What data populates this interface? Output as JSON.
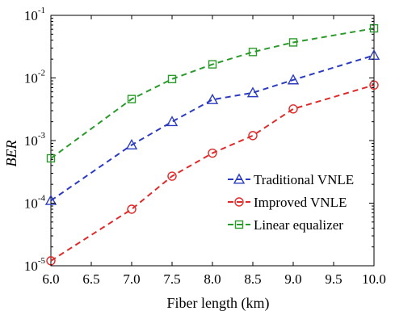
{
  "chart_data": {
    "type": "line",
    "xlabel": "Fiber length (km)",
    "ylabel": "BER",
    "yscale": "log",
    "xlim": [
      6.0,
      10.0
    ],
    "ylim": [
      1e-05,
      0.1
    ],
    "grid": false,
    "legend_position": "bottom-right",
    "x_ticks": [
      "6.0",
      "6.5",
      "7.0",
      "7.5",
      "8.0",
      "8.5",
      "9.0",
      "9.5",
      "10.0"
    ],
    "y_ticks": [
      {
        "base": "10",
        "exp": "-5",
        "value": 1e-05
      },
      {
        "base": "10",
        "exp": "-4",
        "value": 0.0001
      },
      {
        "base": "10",
        "exp": "-3",
        "value": 0.001
      },
      {
        "base": "10",
        "exp": "-2",
        "value": 0.01
      },
      {
        "base": "10",
        "exp": "-1",
        "value": 0.1
      }
    ],
    "series": [
      {
        "name": "Traditional VNLE",
        "color": "#2b3bbf",
        "marker": "triangle",
        "x": [
          6.0,
          7.0,
          7.5,
          8.0,
          8.5,
          9.0,
          10.0
        ],
        "y": [
          0.00011,
          0.00085,
          0.002,
          0.0045,
          0.0058,
          0.0093,
          0.023
        ]
      },
      {
        "name": "Improved VNLE",
        "color": "#e02a2a",
        "marker": "circle",
        "x": [
          6.0,
          7.0,
          7.5,
          8.0,
          8.5,
          9.0,
          10.0
        ],
        "y": [
          1.2e-05,
          8e-05,
          0.00027,
          0.00063,
          0.0012,
          0.0032,
          0.0077
        ]
      },
      {
        "name": "Linear equalizer",
        "color": "#2a9a2a",
        "marker": "square",
        "x": [
          6.0,
          7.0,
          7.5,
          8.0,
          8.5,
          9.0,
          10.0
        ],
        "y": [
          0.00052,
          0.0046,
          0.0096,
          0.0165,
          0.026,
          0.037,
          0.062
        ]
      }
    ]
  }
}
